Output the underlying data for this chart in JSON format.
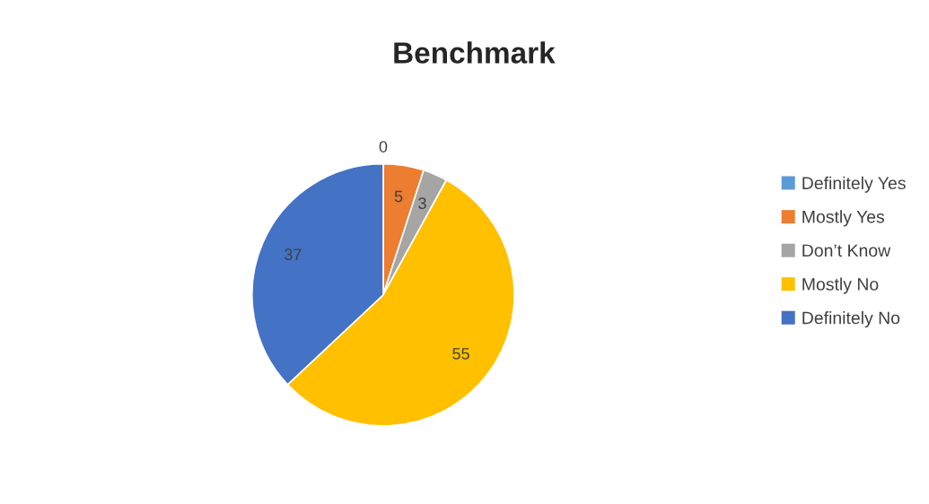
{
  "chart_data": {
    "type": "pie",
    "title": "Benchmark",
    "categories": [
      "Definitely Yes",
      "Mostly Yes",
      "Don’t Know",
      "Mostly No",
      "Definitely No"
    ],
    "values": [
      0,
      5,
      3,
      55,
      37
    ],
    "colors": [
      "#5b9bd5",
      "#ed7d31",
      "#a5a5a5",
      "#ffc000",
      "#4472c4"
    ],
    "value_labels": [
      "0",
      "5",
      "3",
      "55",
      "37"
    ],
    "legend": "right"
  }
}
